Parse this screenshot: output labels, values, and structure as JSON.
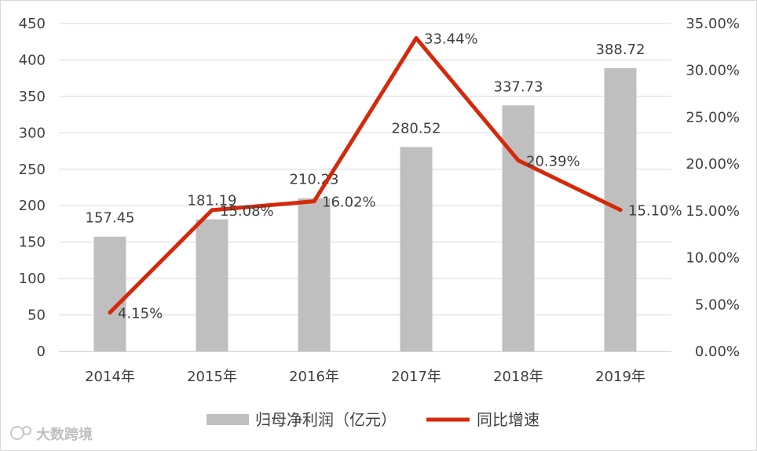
{
  "chart_data": {
    "type": "bar",
    "categories": [
      "2014年",
      "2015年",
      "2016年",
      "2017年",
      "2018年",
      "2019年"
    ],
    "series": [
      {
        "name": "归母净利润（亿元）",
        "type": "bar",
        "axis": "left",
        "values": [
          157.45,
          181.19,
          210.23,
          280.52,
          337.73,
          388.72
        ],
        "labels": [
          "157.45",
          "181.19",
          "210.23",
          "280.52",
          "337.73",
          "388.72"
        ]
      },
      {
        "name": "同比增速",
        "type": "line",
        "axis": "right",
        "values": [
          4.15,
          15.08,
          16.02,
          33.44,
          20.39,
          15.1
        ],
        "labels": [
          "4.15%",
          "15.08%",
          "16.02%",
          "33.44%",
          "20.39%",
          "15.10%"
        ]
      }
    ],
    "left_axis": {
      "ylim": [
        0,
        450
      ],
      "ticks": [
        "0",
        "50",
        "100",
        "150",
        "200",
        "250",
        "300",
        "350",
        "400",
        "450"
      ]
    },
    "right_axis": {
      "ylim": [
        0,
        35
      ],
      "ticks": [
        "0.00%",
        "5.00%",
        "10.00%",
        "15.00%",
        "20.00%",
        "25.00%",
        "30.00%",
        "35.00%"
      ]
    },
    "grid": true,
    "legend": "bottom",
    "colors": {
      "bar": "#bfbfbf",
      "line": "#d5290b",
      "grid": "#d9d9d9",
      "text": "#404040"
    }
  },
  "watermark": "大数跨境"
}
